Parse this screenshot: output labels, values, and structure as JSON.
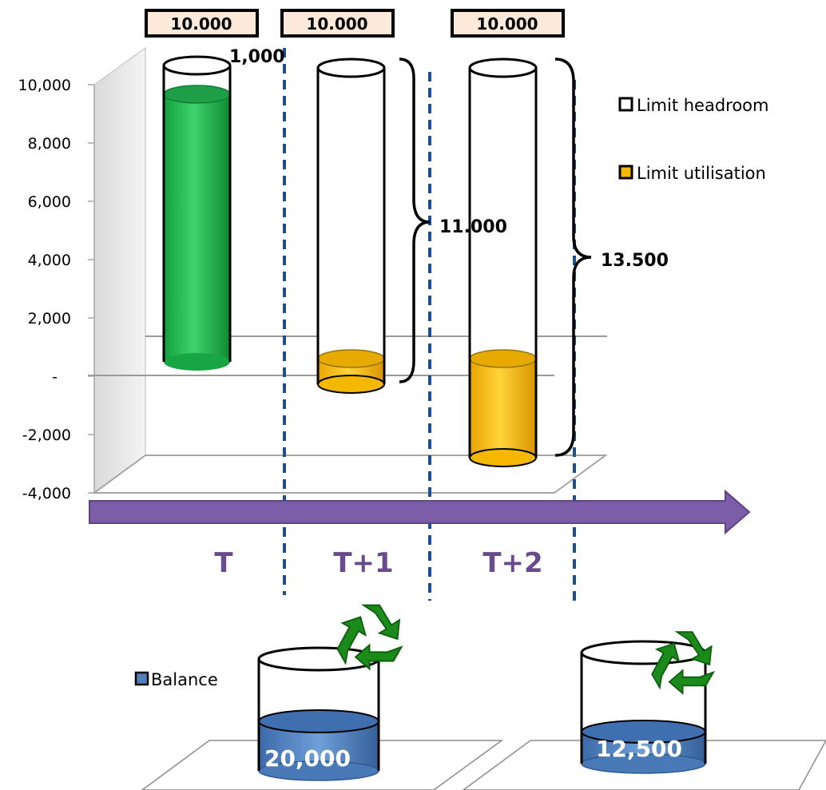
{
  "chart_data": {
    "type": "bar",
    "subtype": "3d-cylinder",
    "y_ticks": [
      "10,000",
      "8,000",
      "6,000",
      "4,000",
      "2,000",
      "-",
      "-2,000",
      "-4,000"
    ],
    "ylim": [
      -4000,
      10000
    ],
    "categories": [
      "T",
      "T+1",
      "T+2"
    ],
    "limit_labels": [
      "10.000",
      "10.000",
      "10.000"
    ],
    "series": [
      {
        "name": "Limit utilisation",
        "values": [
          null,
          500,
          3000
        ]
      },
      {
        "name": "Limit headroom",
        "values": [
          1000,
          10500,
          10500
        ]
      }
    ],
    "filled_level_T": 9000,
    "annotations": [
      "1,000",
      "11.000",
      "13.500"
    ],
    "legend": [
      "Limit headroom",
      "Limit utilisation"
    ],
    "legend_position": "right",
    "balance": {
      "legend": "Balance",
      "values": [
        "20,000",
        "12,500"
      ]
    },
    "colors": {
      "green": "#22b14c",
      "gold": "#f5b800",
      "blue": "#4f81bd",
      "arrow": "#7b5ea7",
      "period_text": "#6a4a8e",
      "divider": "#1f4e8c",
      "box_fill": "#fde9d9"
    }
  }
}
